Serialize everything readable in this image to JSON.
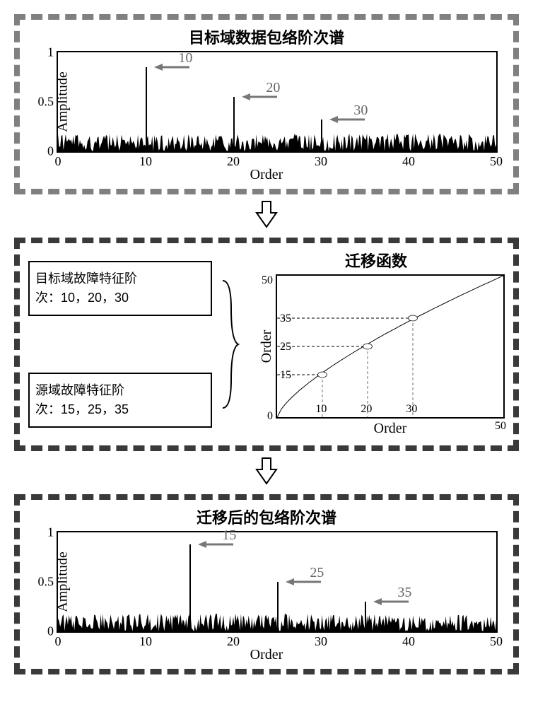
{
  "colors": {
    "panel_border_top": "#808080",
    "panel_border_mid": "#3a3a3a",
    "panel_border_bot": "#3a3a3a",
    "arrow": "#777777",
    "annotation_text": "#666666",
    "noise": "#000000",
    "curve": "#000000",
    "dash_gray": "#888888",
    "dash_dark": "#333333",
    "marker_fill": "#ffffff"
  },
  "top_panel": {
    "title": "目标域数据包络阶次谱",
    "ylabel": "Amplitude",
    "xlabel": "Order",
    "xlim": [
      0,
      50
    ],
    "ylim": [
      0,
      1
    ],
    "xticks": [
      0,
      10,
      20,
      30,
      40,
      50
    ],
    "yticks": [
      0,
      0.5,
      1
    ],
    "noise_level": 0.12,
    "peaks": [
      {
        "order": 10,
        "amplitude": 0.85,
        "label": "10"
      },
      {
        "order": 20,
        "amplitude": 0.55,
        "label": "20"
      },
      {
        "order": 30,
        "amplitude": 0.32,
        "label": "30"
      }
    ]
  },
  "mid_panel": {
    "left_top": {
      "line1": "目标域故障特征阶",
      "line2": "次：10，20，30"
    },
    "left_bot": {
      "line1": "源域故障特征阶",
      "line2": "次：15，25，35"
    },
    "right_title": "迁移函数",
    "chart": {
      "ylabel": "Order",
      "xlabel": "Order",
      "xlim": [
        0,
        50
      ],
      "ylim": [
        0,
        50
      ],
      "xticks_major": [
        0,
        50
      ],
      "yticks_major": [
        0,
        50
      ],
      "y_dash_labels": [
        15,
        25,
        35
      ],
      "x_dash_labels": [
        10,
        20,
        30
      ],
      "points": [
        {
          "x": 10,
          "y": 15
        },
        {
          "x": 20,
          "y": 25
        },
        {
          "x": 30,
          "y": 35
        }
      ],
      "curve_type": "concave-increasing"
    }
  },
  "bot_panel": {
    "title": "迁移后的包络阶次谱",
    "ylabel": "Amplitude",
    "xlabel": "Order",
    "xlim": [
      0,
      50
    ],
    "ylim": [
      0,
      1
    ],
    "xticks": [
      0,
      10,
      20,
      30,
      40,
      50
    ],
    "yticks": [
      0,
      0.5,
      1
    ],
    "noise_level": 0.12,
    "peaks": [
      {
        "order": 15,
        "amplitude": 0.88,
        "label": "15"
      },
      {
        "order": 25,
        "amplitude": 0.5,
        "label": "25"
      },
      {
        "order": 35,
        "amplitude": 0.3,
        "label": "35"
      }
    ]
  }
}
